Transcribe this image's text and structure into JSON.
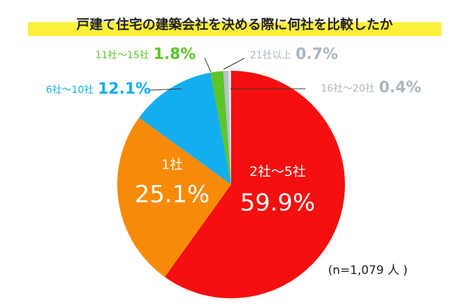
{
  "chart_data": {
    "type": "pie",
    "title": "戸建て住宅の建築会社を決める際に何社を比較したか",
    "note": "(n=1,079 人 )",
    "categories": [
      "2社～5社",
      "1社",
      "6社～10社",
      "11社～15社",
      "21社以上",
      "16社～20社"
    ],
    "values": [
      59.9,
      25.1,
      12.1,
      1.8,
      0.7,
      0.4
    ],
    "value_labels": [
      "59.9%",
      "25.1%",
      "12.1%",
      "1.8%",
      "0.7%",
      "0.4%"
    ],
    "colors": [
      "#f50f0f",
      "#f78a06",
      "#13aef0",
      "#5cc52a",
      "#b7c1c7",
      "#dde3e6"
    ]
  }
}
